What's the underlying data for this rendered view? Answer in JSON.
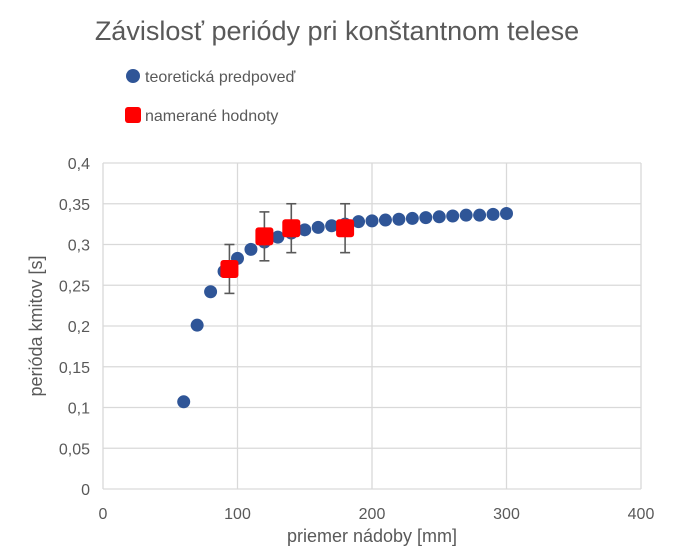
{
  "chart_data": {
    "type": "scatter",
    "title": "Závislosť periódy pri konštantnom telese",
    "xlabel": "priemer nádoby [mm]",
    "ylabel": "perióda kmitov [s]",
    "xlim": [
      0,
      400
    ],
    "ylim": [
      0,
      0.4
    ],
    "xticks": [
      "0",
      "100",
      "200",
      "300",
      "400"
    ],
    "yticks": [
      "0",
      "0,05",
      "0,1",
      "0,15",
      "0,2",
      "0,25",
      "0,3",
      "0,35",
      "0,4"
    ],
    "grid": true,
    "legend_position": "top-left",
    "series": [
      {
        "name": "teoretická predpoveď",
        "color": "#2F5597",
        "marker": "circle",
        "x": [
          60,
          70,
          80,
          90,
          100,
          110,
          120,
          130,
          140,
          150,
          160,
          170,
          180,
          190,
          200,
          210,
          220,
          230,
          240,
          250,
          260,
          270,
          280,
          290,
          300
        ],
        "y": [
          0.107,
          0.201,
          0.242,
          0.267,
          0.283,
          0.294,
          0.303,
          0.309,
          0.314,
          0.318,
          0.321,
          0.323,
          0.325,
          0.328,
          0.329,
          0.33,
          0.331,
          0.332,
          0.333,
          0.334,
          0.335,
          0.336,
          0.336,
          0.337,
          0.338
        ]
      },
      {
        "name": "namerané hodnoty",
        "color": "#FF0000",
        "marker": "square",
        "x": [
          94,
          120,
          140,
          180
        ],
        "y": [
          0.27,
          0.31,
          0.32,
          0.32
        ],
        "y_error": [
          0.03,
          0.03,
          0.03,
          0.03
        ]
      }
    ]
  }
}
